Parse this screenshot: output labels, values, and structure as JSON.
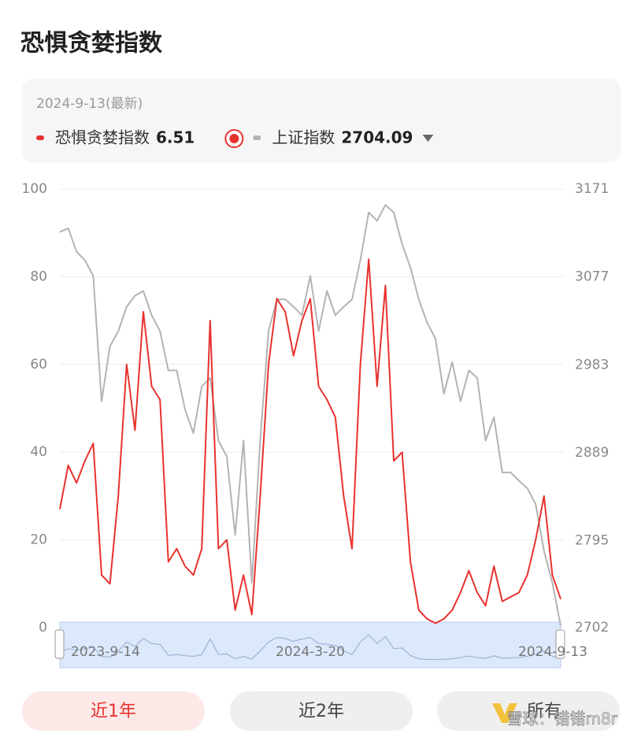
{
  "title": "恐惧贪婪指数",
  "latest_date_label": "2024-9-13(最新)",
  "range_buttons": [
    "近1年",
    "近2年",
    "所有"
  ],
  "watermark": "雪球：错错m8r",
  "chart_data": {
    "type": "line",
    "categories": [
      "2023-9-14",
      null,
      null,
      null,
      null,
      null,
      null,
      null,
      null,
      null,
      null,
      null,
      null,
      null,
      null,
      null,
      null,
      null,
      null,
      null,
      null,
      null,
      null,
      null,
      null,
      null,
      null,
      null,
      null,
      null,
      "2024-3-20",
      null,
      null,
      null,
      null,
      null,
      null,
      null,
      null,
      null,
      null,
      null,
      null,
      null,
      null,
      null,
      null,
      null,
      null,
      null,
      null,
      null,
      null,
      null,
      null,
      null,
      null,
      null,
      null,
      null,
      "2024-9-13"
    ],
    "ylim": [
      0,
      100
    ],
    "yticks": [
      0,
      20,
      40,
      60,
      80,
      100
    ],
    "y2lim": [
      2702,
      3171
    ],
    "y2ticks": [
      2702,
      2795,
      2889,
      2983,
      3077,
      3171
    ],
    "grid": true,
    "series": [
      {
        "name": "恐惧贪婪指数",
        "color": "#e8322e",
        "values": [
          27,
          37,
          33,
          38,
          42,
          12,
          10,
          30,
          60,
          45,
          72,
          55,
          52,
          15,
          18,
          14,
          12,
          18,
          70,
          18,
          20,
          4,
          12,
          3,
          30,
          60,
          75,
          72,
          62,
          70,
          75,
          55,
          52,
          48,
          30,
          18,
          60,
          84,
          55,
          78,
          38,
          40,
          15,
          4,
          2,
          1,
          2,
          4,
          8,
          13,
          8,
          5,
          14,
          6,
          7,
          8,
          12,
          20,
          30,
          12,
          6.51
        ]
      },
      {
        "name": "上证指数",
        "color": "#b3b3b3",
        "axis": "y2",
        "values": [
          3125,
          3129,
          3104,
          3095,
          3078,
          2944,
          3003,
          3019,
          3045,
          3057,
          3062,
          3036,
          3019,
          2977,
          2977,
          2935,
          2910,
          2960,
          2969,
          2902,
          2885,
          2801,
          2902,
          2750,
          2902,
          3019,
          3053,
          3053,
          3045,
          3036,
          3078,
          3019,
          3062,
          3036,
          3045,
          3053,
          3095,
          3146,
          3137,
          3154,
          3146,
          3112,
          3087,
          3053,
          3028,
          3011,
          2952,
          2986,
          2944,
          2977,
          2969,
          2902,
          2927,
          2868,
          2868,
          2859,
          2851,
          2834,
          2784,
          2750,
          2704.09
        ]
      }
    ]
  }
}
